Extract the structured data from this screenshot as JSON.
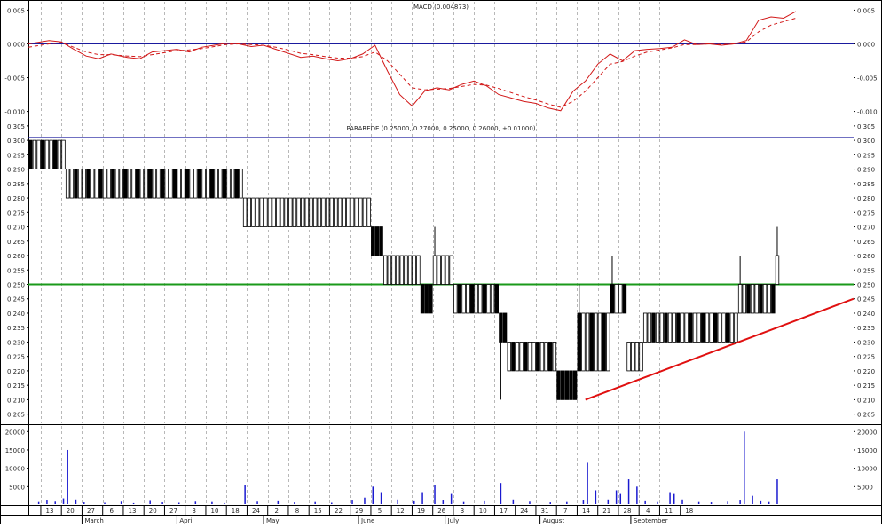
{
  "chart_data": [
    {
      "type": "line",
      "title": "MACD (0.004873)",
      "ylim": [
        -0.0115,
        0.0065
      ],
      "ticks": [
        "0.005",
        "0.000",
        "-0.005",
        "-0.010"
      ],
      "tick_values": [
        0.005,
        0.0,
        -0.005,
        -0.01
      ],
      "zero_line": 0.0,
      "series": [
        {
          "style": "solid",
          "color": "#d21818",
          "x": [
            0,
            5,
            8,
            11,
            14,
            17,
            20,
            24,
            27,
            30,
            33,
            36,
            39,
            42,
            45,
            48,
            51,
            54,
            57,
            60,
            63,
            66,
            69,
            72,
            75,
            78,
            81,
            84,
            87,
            90,
            93,
            96,
            99,
            102,
            105,
            108,
            111,
            114,
            117,
            120,
            123,
            126,
            129,
            132,
            135,
            138,
            141,
            144,
            147,
            150,
            153,
            156,
            159,
            162,
            165,
            168,
            171,
            174,
            177,
            180,
            183,
            186
          ],
          "values": [
            0.0,
            0.0005,
            0.0003,
            -0.0008,
            -0.0018,
            -0.0022,
            -0.0015,
            -0.002,
            -0.0022,
            -0.0012,
            -0.001,
            -0.0008,
            -0.0012,
            -0.0005,
            -0.0002,
            0.0001,
            0.0,
            -0.0004,
            -0.0002,
            -0.0008,
            -0.0014,
            -0.002,
            -0.0018,
            -0.0022,
            -0.0025,
            -0.0022,
            -0.0015,
            -0.0002,
            -0.004,
            -0.0075,
            -0.0092,
            -0.007,
            -0.0065,
            -0.0068,
            -0.006,
            -0.0055,
            -0.0062,
            -0.0075,
            -0.008,
            -0.0085,
            -0.0088,
            -0.0095,
            -0.0099,
            -0.007,
            -0.0055,
            -0.003,
            -0.0015,
            -0.0025,
            -0.001,
            -0.0008,
            -0.0007,
            -0.0005,
            0.0006,
            -0.0001,
            0.0,
            -0.0002,
            0.0,
            0.0005,
            0.0035,
            0.004,
            0.0038,
            0.0048
          ]
        },
        {
          "style": "dashed",
          "color": "#d21818",
          "x": [
            0,
            5,
            8,
            11,
            14,
            17,
            20,
            24,
            27,
            30,
            33,
            36,
            39,
            42,
            45,
            48,
            51,
            54,
            57,
            60,
            63,
            66,
            69,
            72,
            75,
            78,
            81,
            84,
            87,
            90,
            93,
            96,
            99,
            102,
            105,
            108,
            111,
            114,
            117,
            120,
            123,
            126,
            129,
            132,
            135,
            138,
            141,
            144,
            147,
            150,
            153,
            156,
            159,
            162,
            165,
            168,
            171,
            174,
            177,
            180,
            183,
            186
          ],
          "values": [
            -0.0005,
            0.0,
            0.0002,
            -0.0005,
            -0.0012,
            -0.0016,
            -0.0016,
            -0.0018,
            -0.0019,
            -0.0016,
            -0.0013,
            -0.001,
            -0.0009,
            -0.0007,
            -0.0004,
            -0.0001,
            0.0,
            -0.0001,
            -0.0002,
            -0.0005,
            -0.0009,
            -0.0014,
            -0.0016,
            -0.0019,
            -0.0021,
            -0.0021,
            -0.0019,
            -0.0012,
            -0.0025,
            -0.0045,
            -0.0065,
            -0.0068,
            -0.0067,
            -0.0066,
            -0.0063,
            -0.006,
            -0.0061,
            -0.0066,
            -0.0072,
            -0.0078,
            -0.0083,
            -0.0089,
            -0.0094,
            -0.0085,
            -0.007,
            -0.005,
            -0.003,
            -0.0026,
            -0.0018,
            -0.0012,
            -0.0009,
            -0.0006,
            -0.0001,
            -0.0001,
            0.0,
            -0.0001,
            0.0,
            0.0003,
            0.0018,
            0.0028,
            0.0033,
            0.0038
          ]
        }
      ]
    },
    {
      "type": "candlestick",
      "title": "PARAREDE (0.25000, 0.27000, 0.25000, 0.26000, +0.01000)",
      "ylim": [
        0.2015,
        0.3065
      ],
      "ticks": [
        "0.305",
        "0.300",
        "0.295",
        "0.290",
        "0.285",
        "0.280",
        "0.275",
        "0.270",
        "0.265",
        "0.260",
        "0.255",
        "0.250",
        "0.245",
        "0.240",
        "0.235",
        "0.230",
        "0.225",
        "0.220",
        "0.215",
        "0.210",
        "0.205"
      ],
      "tick_values": [
        0.305,
        0.3,
        0.295,
        0.29,
        0.285,
        0.28,
        0.275,
        0.27,
        0.265,
        0.26,
        0.255,
        0.25,
        0.245,
        0.24,
        0.235,
        0.23,
        0.225,
        0.22,
        0.215,
        0.21,
        0.205
      ],
      "hlines": [
        {
          "y": 0.301,
          "color": "#1a1a9e"
        },
        {
          "y": 0.25,
          "color": "#1a9a1a"
        }
      ],
      "trendline": {
        "x1": 135,
        "y1": 0.21,
        "x2": 200,
        "y2": 0.245,
        "color": "#e01010"
      },
      "segments": [
        {
          "x_start": 0,
          "x_end": 8,
          "open": 0.3,
          "close": 0.29,
          "high": 0.3,
          "low": 0.29,
          "pattern": "mixed"
        },
        {
          "x_start": 9,
          "x_end": 51,
          "open": 0.29,
          "close": 0.28,
          "high": 0.29,
          "low": 0.28,
          "pattern": "mixed"
        },
        {
          "x_start": 52,
          "x_end": 82,
          "open": 0.28,
          "close": 0.27,
          "high": 0.28,
          "low": 0.27,
          "pattern": "up"
        },
        {
          "x_start": 83,
          "x_end": 85,
          "open": 0.27,
          "close": 0.26,
          "high": 0.27,
          "low": 0.26,
          "pattern": "down"
        },
        {
          "x_start": 86,
          "x_end": 94,
          "open": 0.26,
          "close": 0.25,
          "high": 0.26,
          "low": 0.25,
          "pattern": "up"
        },
        {
          "x_start": 95,
          "x_end": 97,
          "open": 0.25,
          "close": 0.24,
          "high": 0.25,
          "low": 0.24,
          "pattern": "down"
        },
        {
          "x_start": 98,
          "x_end": 102,
          "open": 0.25,
          "close": 0.26,
          "high": 0.27,
          "low": 0.25,
          "pattern": "up"
        },
        {
          "x_start": 103,
          "x_end": 113,
          "open": 0.25,
          "close": 0.24,
          "high": 0.25,
          "low": 0.24,
          "pattern": "mixed"
        },
        {
          "x_start": 114,
          "x_end": 115,
          "open": 0.24,
          "close": 0.23,
          "high": 0.24,
          "low": 0.21,
          "pattern": "down"
        },
        {
          "x_start": 116,
          "x_end": 127,
          "open": 0.23,
          "close": 0.22,
          "high": 0.23,
          "low": 0.22,
          "pattern": "mixed"
        },
        {
          "x_start": 128,
          "x_end": 132,
          "open": 0.22,
          "close": 0.21,
          "high": 0.22,
          "low": 0.21,
          "pattern": "down"
        },
        {
          "x_start": 133,
          "x_end": 140,
          "open": 0.22,
          "close": 0.24,
          "high": 0.25,
          "low": 0.22,
          "pattern": "mixed"
        },
        {
          "x_start": 141,
          "x_end": 144,
          "open": 0.24,
          "close": 0.25,
          "high": 0.26,
          "low": 0.24,
          "pattern": "mixed"
        },
        {
          "x_start": 145,
          "x_end": 148,
          "open": 0.23,
          "close": 0.22,
          "high": 0.23,
          "low": 0.22,
          "pattern": "up"
        },
        {
          "x_start": 149,
          "x_end": 171,
          "open": 0.24,
          "close": 0.23,
          "high": 0.24,
          "low": 0.23,
          "pattern": "mixed"
        },
        {
          "x_start": 172,
          "x_end": 180,
          "open": 0.25,
          "close": 0.24,
          "high": 0.26,
          "low": 0.24,
          "pattern": "mixed"
        },
        {
          "x_start": 181,
          "x_end": 181,
          "open": 0.25,
          "close": 0.26,
          "high": 0.27,
          "low": 0.25,
          "pattern": "up"
        }
      ]
    },
    {
      "type": "bar",
      "ylim": [
        0,
        22000
      ],
      "ticks": [
        "20000",
        "15000",
        "10000",
        "5000"
      ],
      "tick_values": [
        20000,
        15000,
        10000,
        5000
      ],
      "bars": [
        {
          "x": 2,
          "value": 800
        },
        {
          "x": 4,
          "value": 1200
        },
        {
          "x": 6,
          "value": 900
        },
        {
          "x": 8,
          "value": 1800
        },
        {
          "x": 9,
          "value": 15000
        },
        {
          "x": 11,
          "value": 1500
        },
        {
          "x": 13,
          "value": 700
        },
        {
          "x": 18,
          "value": 600
        },
        {
          "x": 22,
          "value": 900
        },
        {
          "x": 25,
          "value": 500
        },
        {
          "x": 29,
          "value": 1100
        },
        {
          "x": 32,
          "value": 700
        },
        {
          "x": 36,
          "value": 600
        },
        {
          "x": 40,
          "value": 900
        },
        {
          "x": 44,
          "value": 800
        },
        {
          "x": 47,
          "value": 500
        },
        {
          "x": 52,
          "value": 5500
        },
        {
          "x": 55,
          "value": 900
        },
        {
          "x": 60,
          "value": 1000
        },
        {
          "x": 64,
          "value": 700
        },
        {
          "x": 69,
          "value": 800
        },
        {
          "x": 73,
          "value": 600
        },
        {
          "x": 78,
          "value": 1200
        },
        {
          "x": 81,
          "value": 2000
        },
        {
          "x": 83,
          "value": 5000
        },
        {
          "x": 85,
          "value": 3500
        },
        {
          "x": 89,
          "value": 1500
        },
        {
          "x": 93,
          "value": 1000
        },
        {
          "x": 95,
          "value": 3500
        },
        {
          "x": 98,
          "value": 5500
        },
        {
          "x": 100,
          "value": 1200
        },
        {
          "x": 102,
          "value": 3000
        },
        {
          "x": 105,
          "value": 800
        },
        {
          "x": 110,
          "value": 1000
        },
        {
          "x": 114,
          "value": 6000
        },
        {
          "x": 117,
          "value": 1500
        },
        {
          "x": 121,
          "value": 900
        },
        {
          "x": 126,
          "value": 700
        },
        {
          "x": 130,
          "value": 800
        },
        {
          "x": 134,
          "value": 1200
        },
        {
          "x": 135,
          "value": 11500
        },
        {
          "x": 137,
          "value": 4000
        },
        {
          "x": 140,
          "value": 1500
        },
        {
          "x": 142,
          "value": 4000
        },
        {
          "x": 143,
          "value": 3000
        },
        {
          "x": 145,
          "value": 7000
        },
        {
          "x": 147,
          "value": 5000
        },
        {
          "x": 149,
          "value": 1000
        },
        {
          "x": 152,
          "value": 800
        },
        {
          "x": 155,
          "value": 3500
        },
        {
          "x": 156,
          "value": 3000
        },
        {
          "x": 158,
          "value": 1500
        },
        {
          "x": 162,
          "value": 800
        },
        {
          "x": 165,
          "value": 700
        },
        {
          "x": 169,
          "value": 900
        },
        {
          "x": 172,
          "value": 1200
        },
        {
          "x": 173,
          "value": 20000
        },
        {
          "x": 175,
          "value": 2500
        },
        {
          "x": 177,
          "value": 1000
        },
        {
          "x": 179,
          "value": 800
        },
        {
          "x": 181,
          "value": 7000
        }
      ]
    }
  ],
  "x_axis": {
    "day_ticks": [
      {
        "x": 3,
        "label": "13"
      },
      {
        "x": 8,
        "label": "20"
      },
      {
        "x": 13,
        "label": "27"
      },
      {
        "x": 18,
        "label": "6"
      },
      {
        "x": 23,
        "label": "13"
      },
      {
        "x": 28,
        "label": "20"
      },
      {
        "x": 33,
        "label": "27"
      },
      {
        "x": 38,
        "label": "3"
      },
      {
        "x": 43,
        "label": "10"
      },
      {
        "x": 48,
        "label": "18"
      },
      {
        "x": 53,
        "label": "24"
      },
      {
        "x": 58,
        "label": "2"
      },
      {
        "x": 63,
        "label": "8"
      },
      {
        "x": 68,
        "label": "15"
      },
      {
        "x": 73,
        "label": "22"
      },
      {
        "x": 78,
        "label": "29"
      },
      {
        "x": 83,
        "label": "5"
      },
      {
        "x": 88,
        "label": "12"
      },
      {
        "x": 93,
        "label": "19"
      },
      {
        "x": 98,
        "label": "26"
      },
      {
        "x": 103,
        "label": "3"
      },
      {
        "x": 108,
        "label": "10"
      },
      {
        "x": 113,
        "label": "17"
      },
      {
        "x": 118,
        "label": "24"
      },
      {
        "x": 123,
        "label": "31"
      },
      {
        "x": 128,
        "label": "7"
      },
      {
        "x": 133,
        "label": "14"
      },
      {
        "x": 138,
        "label": "21"
      },
      {
        "x": 143,
        "label": "28"
      },
      {
        "x": 148,
        "label": "4"
      },
      {
        "x": 153,
        "label": "11"
      },
      {
        "x": 158,
        "label": "18"
      }
    ],
    "months": [
      {
        "x": 13,
        "label": "March"
      },
      {
        "x": 36,
        "label": "April"
      },
      {
        "x": 57,
        "label": "May"
      },
      {
        "x": 80,
        "label": "June"
      },
      {
        "x": 101,
        "label": "July"
      },
      {
        "x": 124,
        "label": "August"
      },
      {
        "x": 146,
        "label": "September"
      }
    ]
  }
}
